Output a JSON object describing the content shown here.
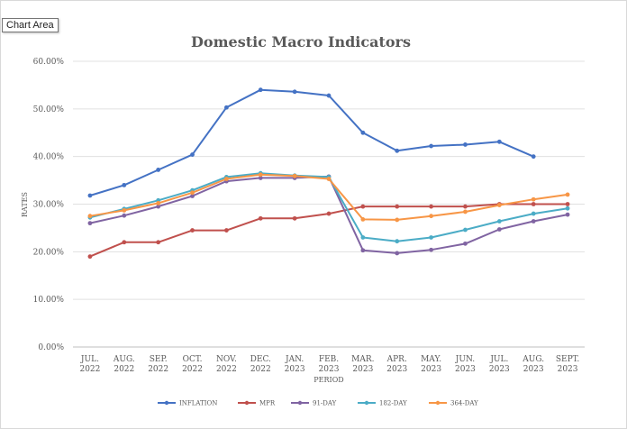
{
  "chart_area_label": "Chart Area",
  "chart_data": {
    "type": "line",
    "title": "Domestic Macro Indicators",
    "xlabel": "PERIOD",
    "ylabel": "RATES",
    "ylim": [
      0,
      60
    ],
    "y_ticks": [
      "0.00%",
      "10.00%",
      "20.00%",
      "30.00%",
      "40.00%",
      "50.00%",
      "60.00%"
    ],
    "grid": true,
    "legend_position": "bottom",
    "categories": [
      [
        "JUL.",
        "2022"
      ],
      [
        "AUG.",
        "2022"
      ],
      [
        "SEP.",
        "2022"
      ],
      [
        "OCT.",
        "2022"
      ],
      [
        "NOV.",
        "2022"
      ],
      [
        "DEC.",
        "2022"
      ],
      [
        "JAN.",
        "2023"
      ],
      [
        "FEB.",
        "2023"
      ],
      [
        "MAR.",
        "2023"
      ],
      [
        "APR.",
        "2023"
      ],
      [
        "MAY.",
        "2023"
      ],
      [
        "JUN.",
        "2023"
      ],
      [
        "JUL.",
        "2023"
      ],
      [
        "AUG.",
        "2023"
      ],
      [
        "SEPT.",
        "2023"
      ]
    ],
    "series": [
      {
        "name": "INFLATION",
        "color": "#4472c4",
        "values": [
          31.8,
          34.0,
          37.2,
          40.4,
          50.3,
          54.0,
          53.6,
          52.8,
          45.0,
          41.2,
          42.2,
          42.5,
          43.1,
          40.0,
          null
        ]
      },
      {
        "name": "MPR",
        "color": "#c0504d",
        "values": [
          19.0,
          22.0,
          22.0,
          24.5,
          24.5,
          27.0,
          27.0,
          28.0,
          29.5,
          29.5,
          29.5,
          29.5,
          30.0,
          30.0,
          30.0
        ]
      },
      {
        "name": "91-DAY",
        "color": "#8064a2",
        "values": [
          26.0,
          27.6,
          29.5,
          31.7,
          34.8,
          35.5,
          35.5,
          35.8,
          20.3,
          19.7,
          20.4,
          21.7,
          24.7,
          26.4,
          27.8
        ]
      },
      {
        "name": "182-DAY",
        "color": "#4bacc6",
        "values": [
          27.2,
          29.0,
          30.8,
          32.9,
          35.7,
          36.5,
          36.0,
          35.7,
          23.0,
          22.2,
          23.0,
          24.6,
          26.4,
          28.0,
          29.1
        ]
      },
      {
        "name": "364-DAY",
        "color": "#f79646",
        "values": [
          27.5,
          28.7,
          30.2,
          32.4,
          35.3,
          36.2,
          35.9,
          35.3,
          26.8,
          26.7,
          27.5,
          28.4,
          29.8,
          31.0,
          32.0
        ]
      }
    ]
  }
}
